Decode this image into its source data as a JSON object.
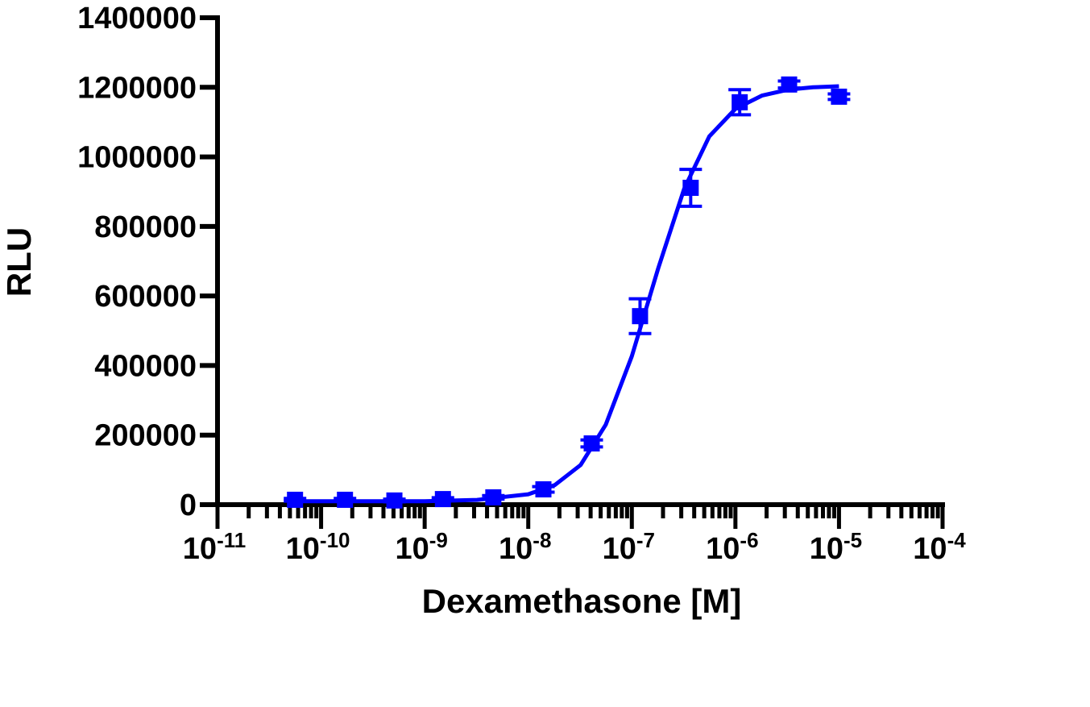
{
  "chart_data": {
    "type": "dose-response",
    "xlabel": "Dexamethasone [M]",
    "ylabel": "RLU",
    "xscale": "log",
    "xlim": [
      1e-11,
      0.0001
    ],
    "xticks": [
      {
        "value": 1e-11,
        "label": "10",
        "exponent": "-11"
      },
      {
        "value": 1e-10,
        "label": "10",
        "exponent": "-10"
      },
      {
        "value": 1e-09,
        "label": "10",
        "exponent": "-9"
      },
      {
        "value": 1e-08,
        "label": "10",
        "exponent": "-8"
      },
      {
        "value": 1e-07,
        "label": "10",
        "exponent": "-7"
      },
      {
        "value": 1e-06,
        "label": "10",
        "exponent": "-6"
      },
      {
        "value": 1e-05,
        "label": "10",
        "exponent": "-5"
      },
      {
        "value": 0.0001,
        "label": "10",
        "exponent": "-4"
      }
    ],
    "ylim": [
      0,
      1400000
    ],
    "yticks": [
      0,
      200000,
      400000,
      600000,
      800000,
      1000000,
      1200000,
      1400000
    ],
    "color": "#0000ff",
    "points": {
      "x": [
        5.6e-11,
        1.7e-10,
        5.1e-10,
        1.5e-09,
        4.6e-09,
        1.4e-08,
        4.1e-08,
        1.2e-07,
        3.7e-07,
        1.1e-06,
        3.3e-06,
        1e-05
      ],
      "values": [
        14000,
        14000,
        12000,
        16000,
        21000,
        44000,
        176000,
        542000,
        911000,
        1157000,
        1208000,
        1173000
      ],
      "errors": [
        4000,
        4000,
        4000,
        4000,
        5000,
        8000,
        10000,
        50000,
        53000,
        36000,
        10000,
        8000
      ]
    },
    "curve": {
      "x": [
        5.6e-11,
        3.2e-10,
        1e-09,
        3.2e-09,
        1e-08,
        1.8e-08,
        3.2e-08,
        5.6e-08,
        1e-07,
        1.8e-07,
        3.2e-07,
        5.6e-07,
        1e-06,
        1.8e-06,
        3.2e-06,
        5.6e-06,
        1e-05
      ],
      "values": [
        10000,
        10000,
        10000,
        13600,
        30000,
        56000,
        114000,
        230000,
        427000,
        680000,
        908000,
        1059000,
        1138000,
        1176000,
        1193000,
        1200000,
        1203000
      ]
    }
  }
}
